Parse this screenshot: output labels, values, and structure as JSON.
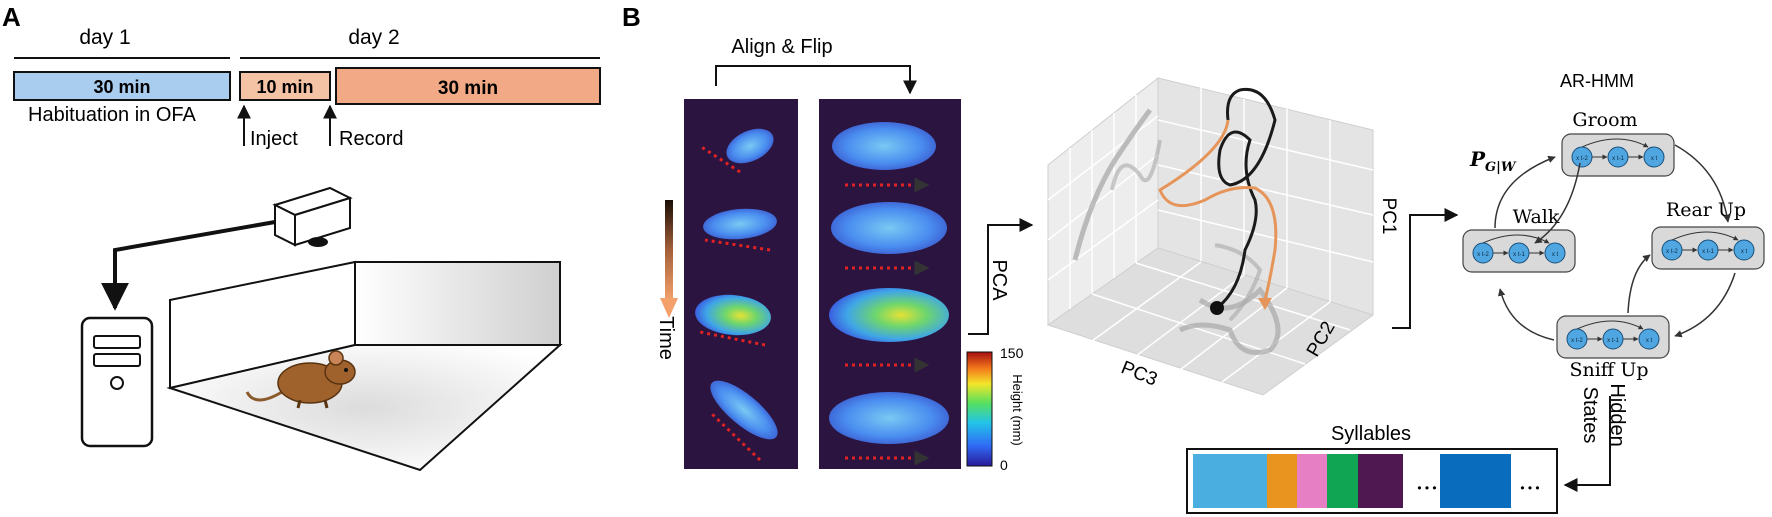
{
  "panel_a": {
    "label": "A",
    "day1": "day 1",
    "day2": "day 2",
    "bar1": "30 min",
    "bar2": "10 min",
    "bar3": "30 min",
    "caption": "Habituation in OFA",
    "inject": "Inject",
    "record": "Record"
  },
  "panel_b": {
    "label": "B",
    "align_flip": "Align & Flip",
    "time": "Time",
    "pca": "PCA",
    "colorbar": {
      "max": "150",
      "min": "0",
      "label": "Height (mm)"
    },
    "axes": {
      "pc1": "PC1",
      "pc2": "PC2",
      "pc3": "PC3"
    },
    "hmm": {
      "title": "AR-HMM",
      "prob": "P",
      "prob_sub": "G|W",
      "states": [
        "Groom",
        "Walk",
        "Rear Up",
        "Sniff Up"
      ],
      "node_labels": [
        "x t-2",
        "x t-1",
        "x t"
      ]
    },
    "hidden_states": [
      "Hidden",
      "States"
    ],
    "syllables": {
      "title": "Syllables",
      "colors": [
        "#4aaee0",
        "#e8941f",
        "#e67fc4",
        "#0fa552",
        "#4f1850",
        "#0a6cbc"
      ],
      "ellipsis": "• • •"
    }
  }
}
